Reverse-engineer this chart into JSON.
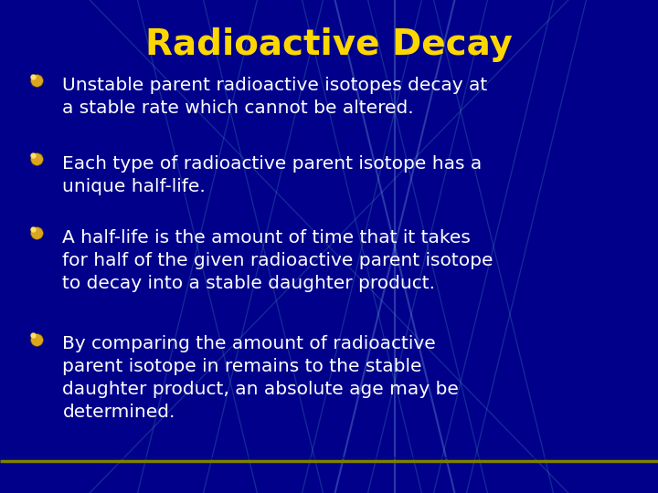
{
  "title": "Radioactive Decay",
  "title_color": "#FFD700",
  "title_fontsize": 28,
  "bg_color": "#00008B",
  "bullet_color": "#FFFFFF",
  "bullet_fontsize": 14.5,
  "bullet_icon_color": "#DAA520",
  "bullet_icon_inner": "#8B6000",
  "bullets": [
    "Unstable parent radioactive isotopes decay at\na stable rate which cannot be altered.",
    "Each type of radioactive parent isotope has a\nunique half-life.",
    "A half-life is the amount of time that it takes\nfor half of the given radioactive parent isotope\nto decay into a stable daughter product.",
    "By comparing the amount of radioactive\nparent isotope in remains to the stable\ndaughter product, an absolute age may be\ndetermined."
  ],
  "line_color": "#3366AA",
  "line_alpha": 0.4,
  "bottom_line_color": "#808000",
  "figsize": [
    7.2,
    5.4
  ],
  "dpi": 100,
  "bg_lines": [
    [
      0.55,
      1.05,
      0.75,
      -0.05
    ],
    [
      0.65,
      1.05,
      0.85,
      -0.05
    ],
    [
      0.45,
      1.05,
      0.65,
      -0.05
    ],
    [
      0.75,
      1.05,
      0.55,
      -0.05
    ],
    [
      0.65,
      1.05,
      0.45,
      -0.05
    ],
    [
      0.85,
      1.05,
      0.65,
      -0.05
    ],
    [
      0.5,
      1.05,
      0.3,
      -0.05
    ],
    [
      0.4,
      1.05,
      0.2,
      -0.05
    ],
    [
      0.3,
      1.05,
      0.5,
      -0.05
    ],
    [
      0.2,
      1.05,
      0.4,
      -0.05
    ],
    [
      0.9,
      1.05,
      0.7,
      -0.05
    ],
    [
      0.1,
      1.05,
      0.9,
      -0.05
    ],
    [
      0.9,
      1.05,
      0.1,
      -0.05
    ]
  ],
  "bright_lines": [
    [
      0.6,
      1.05,
      0.6,
      -0.05
    ],
    [
      0.7,
      1.05,
      0.5,
      -0.05
    ],
    [
      0.5,
      1.05,
      0.7,
      -0.05
    ]
  ]
}
